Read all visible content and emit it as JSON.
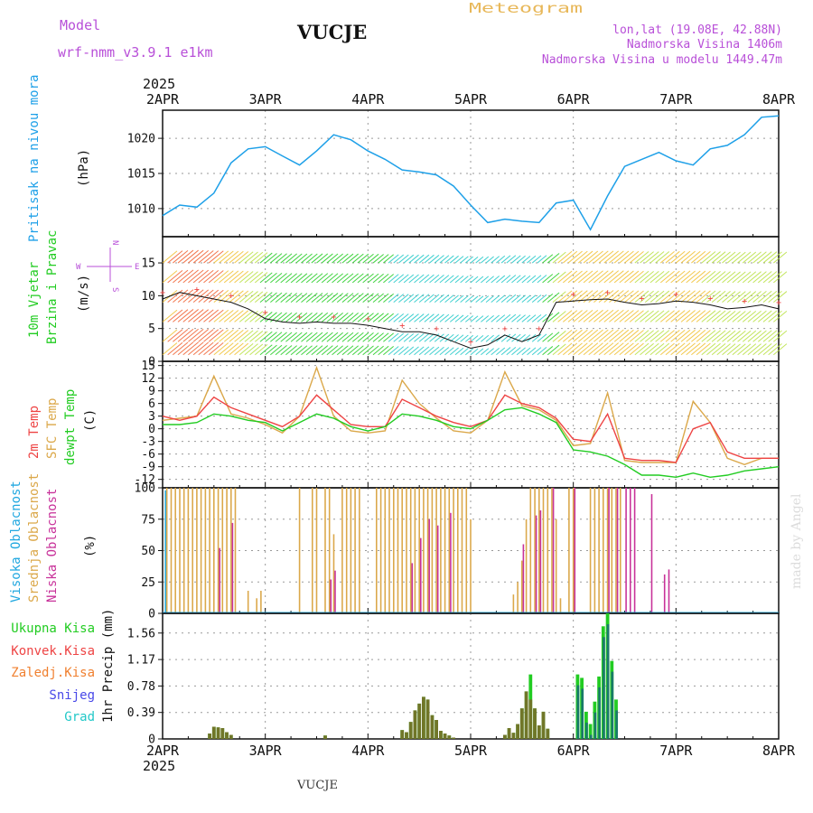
{
  "header": {
    "model_label": "Model",
    "model_name": "wrf-nmm_v3.9.1 e1km",
    "station": "VUCJE",
    "meteogram": "Meteogram",
    "lonlat": "lon,lat (19.08E, 42.88N)",
    "elevation": "Nadmorska Visina 1406m",
    "model_elevation": "Nadmorska Visina u modelu 1449.47m",
    "footer_station": "VUCJE",
    "watermark": "made by Angel"
  },
  "time_axis": {
    "year_label": "2025",
    "ticks": [
      "2APR",
      "3APR",
      "4APR",
      "5APR",
      "6APR",
      "7APR",
      "8APR"
    ],
    "hours": 144
  },
  "colors": {
    "pressure": "#1ea0e8",
    "grid": "#9a9a9a",
    "purple": "#b84fd8",
    "orange_title": "#e8b85a",
    "temp2m": "#ee4444",
    "sfc": "#dba84a",
    "dewpt": "#22cc22",
    "high_cloud": "#22a8e0",
    "mid_cloud": "#dba84a",
    "low_cloud": "#c8329a",
    "total_precip": "#22cc22",
    "conv_precip": "#ee4444",
    "frozen_precip": "#f08030",
    "snow": "#4848e8",
    "graupel": "#22c8c8"
  },
  "panels": {
    "pressure": {
      "ylabel_name": "Pritisak na nivou mora",
      "ylabel_unit": "(hPa)",
      "yticks": [
        "1010",
        "1015",
        "1020"
      ]
    },
    "wind": {
      "ylabel_1": "10m Vjetar",
      "ylabel_2": "Brzina i Pravac",
      "ylabel_unit": "(m/s)",
      "yticks": [
        "0",
        "5",
        "10",
        "15"
      ],
      "compass": {
        "n": "N",
        "s": "S",
        "e": "E",
        "w": "W"
      }
    },
    "temperature": {
      "label_2m": "2m Temp",
      "label_sfc": "SFC Temp",
      "label_dewpt": "dewpt Temp",
      "ylabel_unit": "(C)",
      "yticks": [
        "15",
        "12",
        "9",
        "6",
        "3",
        "0",
        "-3",
        "-6",
        "-9",
        "-12"
      ]
    },
    "clouds": {
      "label_high": "Visoka Oblacnost",
      "label_mid": "Srednja Oblacnost",
      "label_low": "Niska Oblacnost",
      "ylabel_unit": "(%)",
      "yticks": [
        "0",
        "25",
        "50",
        "75",
        "100"
      ]
    },
    "precip": {
      "legend_total": "Ukupna Kisa",
      "legend_conv": "Konvek.Kisa",
      "legend_frozen": "Zaledj.Kisa",
      "legend_snow": "Snijeg",
      "legend_graupel": "Grad",
      "ylabel": "1hr Precip (mm)",
      "yticks": [
        "0",
        "0.39",
        "0.78",
        "1.17",
        "1.56"
      ]
    }
  },
  "chart_data": [
    {
      "type": "line",
      "ylim": [
        1006,
        1024
      ],
      "grid": true,
      "x_hours": [
        0,
        4,
        8,
        12,
        16,
        20,
        24,
        28,
        32,
        36,
        40,
        44,
        48,
        52,
        56,
        60,
        64,
        68,
        72,
        76,
        80,
        84,
        88,
        92,
        96,
        100,
        104,
        108,
        112,
        116,
        120,
        124,
        128,
        132,
        136,
        140,
        144
      ],
      "series": [
        {
          "values": [
            1009.0,
            1010.5,
            1010.2,
            1012.2,
            1016.5,
            1018.5,
            1018.8,
            1017.5,
            1016.2,
            1018.2,
            1020.5,
            1019.8,
            1018.2,
            1017.0,
            1015.5,
            1015.2,
            1014.8,
            1013.2,
            1010.5,
            1008.0,
            1008.5,
            1008.2,
            1008.0,
            1010.8,
            1011.2,
            1007.0,
            1011.8,
            1016.0,
            1017.0,
            1018.0,
            1016.8,
            1016.2,
            1018.5,
            1019.0,
            1020.5,
            1023.0,
            1023.2
          ]
        }
      ]
    },
    {
      "type": "line",
      "ylim": [
        0,
        19
      ],
      "grid": true,
      "x_hours": [
        0,
        4,
        8,
        12,
        16,
        20,
        24,
        28,
        32,
        36,
        40,
        44,
        48,
        52,
        56,
        60,
        64,
        68,
        72,
        76,
        80,
        84,
        88,
        92,
        96,
        100,
        104,
        108,
        112,
        116,
        120,
        124,
        128,
        132,
        136,
        140,
        144
      ],
      "series": [
        {
          "values": [
            9.5,
            10.5,
            10.0,
            9.5,
            9.0,
            8.0,
            6.5,
            6.0,
            5.8,
            6.0,
            5.8,
            5.8,
            5.5,
            5.0,
            4.5,
            4.5,
            4.0,
            3.0,
            2.0,
            2.5,
            4.0,
            3.0,
            4.0,
            9.0,
            9.2,
            9.4,
            9.5,
            9.0,
            8.6,
            8.8,
            9.2,
            9.0,
            8.6,
            8.0,
            8.2,
            8.6,
            8.0
          ]
        }
      ]
    },
    {
      "type": "line",
      "ylim": [
        -14,
        16
      ],
      "grid": true,
      "x_hours": [
        0,
        4,
        8,
        12,
        16,
        20,
        24,
        28,
        32,
        36,
        40,
        44,
        48,
        52,
        56,
        60,
        64,
        68,
        72,
        76,
        80,
        84,
        88,
        92,
        96,
        100,
        104,
        108,
        112,
        116,
        120,
        124,
        128,
        132,
        136,
        140,
        144
      ],
      "series": [
        {
          "name": "SFC Temp",
          "values": [
            2.0,
            2.5,
            3.0,
            12.5,
            3.5,
            2.5,
            1.0,
            -1.0,
            3.0,
            14.5,
            3.0,
            -0.5,
            -1.0,
            -0.5,
            11.5,
            6.0,
            2.5,
            -0.5,
            -1.0,
            2.0,
            13.5,
            5.5,
            4.5,
            2.0,
            -4.0,
            -3.5,
            8.5,
            -7.5,
            -8.0,
            -8.0,
            -8.0,
            6.5,
            1.5,
            -7.0,
            -8.5,
            -7.0,
            -7.0
          ]
        },
        {
          "name": "2m Temp",
          "values": [
            3.0,
            2.0,
            3.0,
            7.5,
            5.0,
            3.5,
            2.0,
            0.5,
            3.0,
            8.0,
            4.5,
            1.0,
            0.5,
            0.5,
            7.0,
            5.0,
            3.0,
            1.5,
            0.5,
            2.0,
            8.0,
            6.0,
            5.0,
            2.5,
            -2.5,
            -3.0,
            3.5,
            -7.0,
            -7.5,
            -7.5,
            -8.0,
            0.0,
            1.5,
            -5.5,
            -7.0,
            -7.0,
            -7.0
          ]
        },
        {
          "name": "dewpt Temp",
          "values": [
            1.0,
            1.0,
            1.5,
            3.5,
            3.0,
            2.0,
            1.5,
            -0.5,
            1.5,
            3.5,
            2.5,
            0.5,
            -0.5,
            0.5,
            3.5,
            3.0,
            2.0,
            0.5,
            0.0,
            2.0,
            4.5,
            5.0,
            3.5,
            1.5,
            -5.0,
            -5.5,
            -6.5,
            -8.5,
            -11.0,
            -11.0,
            -11.5,
            -10.5,
            -11.5,
            -11.0,
            -10.0,
            -9.5,
            -9.0
          ]
        }
      ]
    },
    {
      "type": "bar",
      "ylim": [
        0,
        100
      ],
      "grid": true,
      "x_hours": [
        1,
        2,
        3,
        4,
        5,
        6,
        7,
        8,
        9,
        10,
        11,
        12,
        13,
        14,
        15,
        16,
        17,
        20,
        22,
        23,
        24,
        32,
        35,
        36,
        38,
        39,
        40,
        42,
        43,
        44,
        45,
        46,
        50,
        51,
        52,
        53,
        54,
        55,
        56,
        57,
        58,
        59,
        60,
        61,
        62,
        63,
        64,
        65,
        66,
        67,
        68,
        69,
        70,
        71,
        72,
        82,
        83,
        84,
        85,
        86,
        87,
        88,
        89,
        90,
        91,
        92,
        93,
        94,
        95,
        96,
        97,
        100,
        101,
        102,
        103,
        104,
        105,
        106,
        107,
        108,
        109,
        110,
        114,
        115,
        116,
        117,
        118,
        119,
        120,
        121,
        122,
        123,
        124,
        125,
        127,
        128,
        132,
        133,
        134,
        135,
        136,
        137,
        138
      ],
      "series": [
        {
          "name": "Visoka Oblacnost",
          "values": [
            98,
            0,
            0,
            0,
            0,
            0,
            0,
            0,
            0,
            0,
            0,
            0,
            0,
            0,
            0,
            0,
            0,
            0,
            0,
            0,
            0,
            0,
            0,
            0,
            0,
            0,
            0,
            0,
            0,
            0,
            0,
            0,
            0,
            0,
            0,
            0,
            0,
            0,
            0,
            0,
            0,
            0,
            0,
            0,
            0,
            0,
            0,
            0,
            0,
            0,
            0,
            0,
            0,
            0,
            0,
            0,
            0,
            0,
            0,
            0,
            0,
            0,
            0,
            0,
            0,
            0,
            0,
            0,
            0,
            0,
            0,
            0,
            0,
            0,
            0,
            0,
            0,
            0,
            0,
            0,
            0,
            0,
            0,
            0,
            0,
            0,
            0,
            0,
            0,
            0,
            0,
            0,
            0,
            0,
            0,
            0,
            0,
            0,
            0,
            0,
            0,
            0,
            0
          ]
        },
        {
          "name": "Srednja Oblacnost",
          "values": [
            100,
            100,
            100,
            100,
            100,
            100,
            100,
            100,
            100,
            100,
            100,
            100,
            100,
            100,
            100,
            100,
            100,
            18,
            12,
            18,
            0,
            100,
            100,
            100,
            100,
            100,
            63,
            100,
            100,
            100,
            100,
            100,
            100,
            100,
            100,
            100,
            100,
            100,
            100,
            100,
            100,
            100,
            100,
            100,
            100,
            100,
            100,
            100,
            100,
            100,
            100,
            100,
            100,
            100,
            75,
            15,
            25,
            42,
            75,
            100,
            100,
            100,
            100,
            100,
            100,
            75,
            12,
            0,
            100,
            100,
            0,
            100,
            100,
            100,
            100,
            100,
            100,
            100,
            100,
            0,
            0,
            0,
            0,
            0,
            0,
            0,
            0,
            0,
            0,
            0,
            0,
            0,
            0,
            0,
            0,
            0,
            0,
            0,
            0,
            0,
            0,
            0,
            0
          ]
        },
        {
          "name": "Niska Oblacnost",
          "values": [
            0,
            0,
            0,
            0,
            0,
            0,
            0,
            0,
            0,
            0,
            0,
            0,
            52,
            0,
            0,
            72,
            0,
            0,
            0,
            0,
            0,
            0,
            0,
            0,
            0,
            27,
            34,
            0,
            0,
            0,
            0,
            0,
            0,
            0,
            0,
            0,
            0,
            0,
            0,
            0,
            40,
            0,
            60,
            0,
            75,
            0,
            70,
            0,
            0,
            80,
            0,
            0,
            0,
            0,
            0,
            0,
            0,
            55,
            0,
            0,
            78,
            82,
            0,
            0,
            100,
            0,
            0,
            0,
            0,
            100,
            0,
            0,
            0,
            0,
            0,
            100,
            0,
            100,
            0,
            100,
            100,
            100,
            95,
            0,
            0,
            31,
            35,
            0,
            0,
            0,
            0,
            0,
            0,
            0,
            0,
            0,
            0,
            0,
            0,
            0,
            0,
            0,
            0
          ]
        }
      ]
    },
    {
      "type": "bar",
      "ylim": [
        0,
        1.85
      ],
      "grid": true,
      "x_hours": [
        11,
        12,
        13,
        14,
        15,
        16,
        38,
        56,
        57,
        58,
        59,
        60,
        61,
        62,
        63,
        64,
        65,
        66,
        67,
        68,
        80,
        81,
        82,
        83,
        84,
        85,
        86,
        87,
        88,
        89,
        90,
        97,
        98,
        99,
        100,
        101,
        102,
        103,
        104,
        105,
        106
      ],
      "series": [
        {
          "name": "Ukupna Kisa",
          "values": [
            0.08,
            0.18,
            0.17,
            0.16,
            0.1,
            0.06,
            0.05,
            0.13,
            0.1,
            0.25,
            0.42,
            0.52,
            0.62,
            0.58,
            0.35,
            0.28,
            0.12,
            0.08,
            0.05,
            0.02,
            0.06,
            0.16,
            0.09,
            0.22,
            0.45,
            0.7,
            0.95,
            0.45,
            0.2,
            0.4,
            0.15,
            0.95,
            0.9,
            0.4,
            0.22,
            0.55,
            0.92,
            1.66,
            1.85,
            1.15,
            0.58
          ]
        },
        {
          "name": "Konvek.Kisa",
          "values": [
            0.08,
            0.18,
            0.17,
            0.16,
            0.1,
            0.06,
            0.05,
            0.13,
            0.1,
            0.25,
            0.42,
            0.52,
            0.62,
            0.58,
            0.35,
            0.28,
            0.12,
            0.08,
            0.05,
            0.02,
            0.06,
            0.16,
            0.09,
            0.22,
            0.45,
            0.7,
            0.58,
            0.45,
            0.2,
            0.4,
            0.15,
            0.0,
            0.0,
            0.0,
            0.0,
            0.0,
            0.0,
            0.0,
            0.0,
            0.0,
            0.0
          ]
        }
      ]
    }
  ]
}
